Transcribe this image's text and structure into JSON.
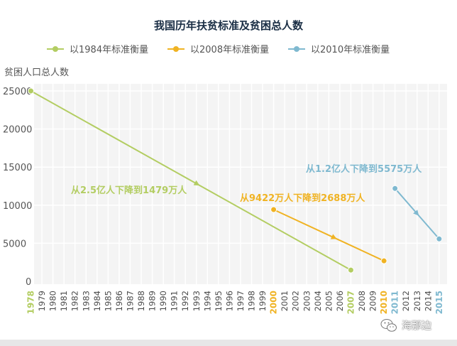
{
  "chart_data": {
    "type": "line",
    "title": "我国历年扶贫标准及贫困总人数",
    "ylabel": "贫困人口总人数",
    "ylim": [
      0,
      25000
    ],
    "yticks": [
      0,
      5000,
      10000,
      15000,
      20000,
      25000
    ],
    "grid": true,
    "legend_position": "top",
    "categories": [
      "1978",
      "1979",
      "1980",
      "1981",
      "1982",
      "1983",
      "1984",
      "1985",
      "1986",
      "1987",
      "1988",
      "1989",
      "1990",
      "1991",
      "1992",
      "1993",
      "1994",
      "1995",
      "1996",
      "1997",
      "1998",
      "1999",
      "2000",
      "2001",
      "2002",
      "2003",
      "2004",
      "2005",
      "2006",
      "2007",
      "2008",
      "2009",
      "2010",
      "2011",
      "2012",
      "2013",
      "2014",
      "2015"
    ],
    "highlighted_years": {
      "1978": "#b3cd62",
      "2000": "#f0b323",
      "2007": "#b3cd62",
      "2010": "#f0b323",
      "2011": "#7fb9d0",
      "2015": "#7fb9d0"
    },
    "series": [
      {
        "name": "以1984年标准衡量",
        "color": "#b3cd62",
        "points": [
          {
            "x": "1978",
            "y": 25000
          },
          {
            "x": "2007",
            "y": 1479
          }
        ],
        "annotation": "从2.5亿人下降到1479万人"
      },
      {
        "name": "以2008年标准衡量",
        "color": "#f0b323",
        "points": [
          {
            "x": "2000",
            "y": 9422
          },
          {
            "x": "2010",
            "y": 2688
          }
        ],
        "annotation": "从9422万人下降到2688万人"
      },
      {
        "name": "以2010年标准衡量",
        "color": "#7fb9d0",
        "points": [
          {
            "x": "2011",
            "y": 12200
          },
          {
            "x": "2015",
            "y": 5575
          }
        ],
        "annotation": "从1.2亿人下降到5575万人"
      }
    ]
  },
  "watermark": {
    "text": "海那边"
  }
}
